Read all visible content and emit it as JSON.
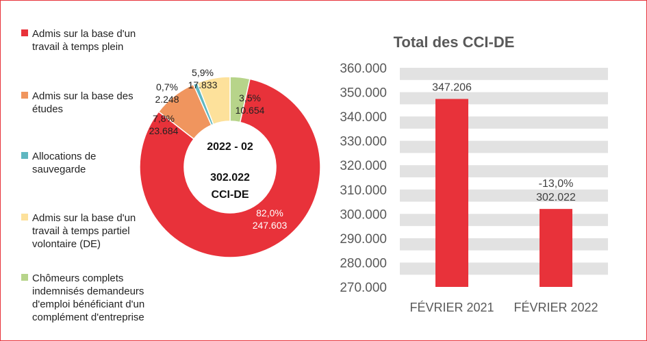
{
  "colors": {
    "border": "#e8323a",
    "red": "#e8323a",
    "orange": "#f0955e",
    "teal": "#5fb7c1",
    "yellow": "#fde19b",
    "green": "#b7d48a",
    "grid": "#e2e2e2"
  },
  "chart_data": [
    {
      "type": "pie",
      "variant": "donut",
      "center_label": {
        "period": "2022 - 02",
        "total": "302.022",
        "unit": "CCI-DE"
      },
      "legend_position": "left",
      "slices": [
        {
          "name": "Admis sur la base d'un travail à temps plein",
          "legend_lines": [
            "Admis sur la base d'un",
            "travail à temps plein"
          ],
          "pct_label": "82,0%",
          "value_label": "247.603",
          "value": 247603,
          "color": "#e8323a"
        },
        {
          "name": "Admis sur la base des études",
          "legend_lines": [
            "Admis sur la base des",
            "études"
          ],
          "pct_label": "7,8%",
          "value_label": "23.684",
          "value": 23684,
          "color": "#f0955e"
        },
        {
          "name": "Allocations de sauvegarde",
          "legend_lines": [
            "Allocations de",
            "sauvegarde"
          ],
          "pct_label": "0,7%",
          "value_label": "2.248",
          "value": 2248,
          "color": "#5fb7c1"
        },
        {
          "name": "Admis sur la base d'un travail à temps partiel volontaire (DE)",
          "legend_lines": [
            "Admis sur la base d'un",
            "travail à temps partiel",
            "volontaire (DE)"
          ],
          "pct_label": "5,9%",
          "value_label": "17.833",
          "value": 17833,
          "color": "#fde19b"
        },
        {
          "name": "Chômeurs complets indemnisés demandeurs d'emploi bénéficiant d'un complément d'entreprise",
          "legend_lines": [
            "Chômeurs complets",
            "indemnisés demandeurs",
            "d'emploi bénéficiant d'un",
            "complément d'entreprise"
          ],
          "pct_label": "3,5%",
          "value_label": "10.654",
          "value": 10654,
          "color": "#b7d48a"
        }
      ]
    },
    {
      "type": "bar",
      "title": "Total des CCI-DE",
      "categories": [
        "FÉVRIER 2021",
        "FÉVRIER 2022"
      ],
      "values": [
        347206,
        302022
      ],
      "value_labels": [
        "347.206",
        "302.022"
      ],
      "change_labels": [
        "",
        "-13,0%"
      ],
      "ylim": [
        270000,
        360000
      ],
      "yticks": [
        270000,
        280000,
        290000,
        300000,
        310000,
        320000,
        330000,
        340000,
        350000,
        360000
      ],
      "ytick_labels": [
        "270.000",
        "280.000",
        "290.000",
        "300.000",
        "310.000",
        "320.000",
        "330.000",
        "340.000",
        "350.000",
        "360.000"
      ],
      "grid": "horizontal bands",
      "color": "#e8323a"
    }
  ]
}
